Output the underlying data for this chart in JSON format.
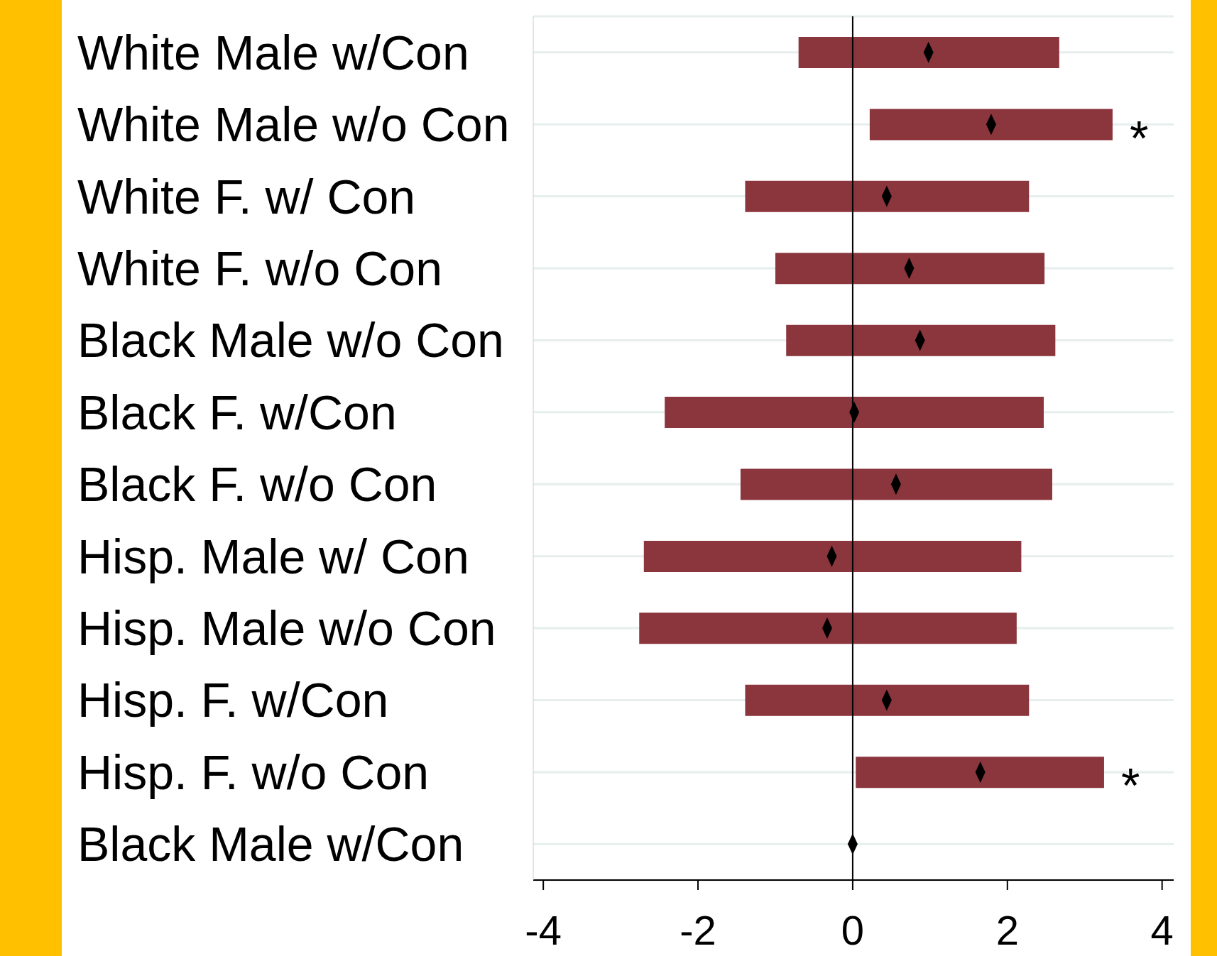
{
  "chart_data": {
    "type": "bar",
    "orientation": "horizontal",
    "categories": [
      "White Male w/Con",
      "White Male w/o Con",
      "White F. w/ Con",
      "White F. w/o Con",
      "Black Male w/o Con",
      "Black F. w/Con",
      "Black F. w/o Con",
      "Hisp. Male w/ Con",
      "Hisp. Male w/o Con",
      "Hisp. F. w/Con",
      "Hisp. F. w/o Con",
      "Black Male w/Con"
    ],
    "series": [
      {
        "color": "#8b353c",
        "base": [
          -0.7,
          0.22,
          -1.39,
          -1.0,
          -0.86,
          -2.43,
          -1.45,
          -2.7,
          -2.76,
          -1.39,
          0.04,
          null
        ],
        "values": [
          3.37,
          3.14,
          3.67,
          3.48,
          3.48,
          4.9,
          4.03,
          4.88,
          4.88,
          3.67,
          3.21,
          null
        ],
        "value_labels": [
          null,
          "*",
          null,
          null,
          null,
          null,
          null,
          null,
          null,
          null,
          "*",
          null
        ]
      },
      {
        "type": "scatter",
        "color": "#000000",
        "marker": "diamond",
        "values": [
          0.98,
          1.79,
          0.44,
          0.73,
          0.87,
          0.02,
          0.56,
          -0.27,
          -0.33,
          0.44,
          1.65,
          0
        ]
      }
    ],
    "xlim": [
      -4.13,
      4.15
    ],
    "xticks": [
      -4,
      -2,
      0,
      2,
      4
    ],
    "grid": "y",
    "legend": false,
    "ref_lines": [
      {
        "axis": "x",
        "value": 0,
        "color": "#000000"
      }
    ]
  }
}
